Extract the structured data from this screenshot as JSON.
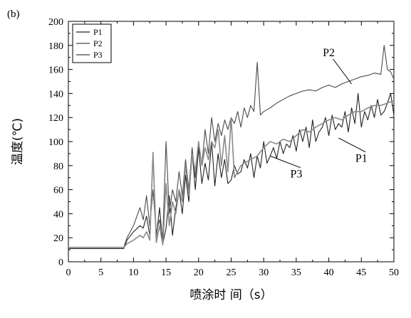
{
  "chart_data": {
    "type": "line",
    "panel_label": "(b)",
    "xlabel": "喷涂时 间（s）",
    "ylabel": "温度(℃)",
    "xlim": [
      0,
      50
    ],
    "ylim": [
      0,
      200
    ],
    "xticks": [
      "0",
      "5",
      "10",
      "15",
      "20",
      "25",
      "30",
      "35",
      "40",
      "45",
      "50"
    ],
    "yticks": [
      "0",
      "20",
      "40",
      "60",
      "80",
      "100",
      "120",
      "140",
      "160",
      "180",
      "200"
    ],
    "grid": false,
    "legend_position": "top-left",
    "series": [
      {
        "name": "P1",
        "color": "#222222",
        "x": [
          0,
          5,
          8.5,
          9,
          10,
          11,
          11.5,
          12,
          12.5,
          13,
          13.5,
          14,
          14.5,
          15,
          15.5,
          16,
          16.5,
          17,
          17.5,
          18,
          18.5,
          19,
          19.5,
          20,
          20.5,
          21,
          21.5,
          22,
          22.5,
          23,
          23.5,
          24,
          24.5,
          25,
          25.5,
          26,
          26.5,
          27,
          27.5,
          28,
          28.5,
          29,
          29.5,
          30,
          30.5,
          31,
          31.5,
          32,
          32.5,
          33,
          33.5,
          34,
          34.5,
          35,
          35.5,
          36,
          36.5,
          37,
          37.5,
          38,
          38.5,
          39,
          39.5,
          40,
          40.5,
          41,
          41.5,
          42,
          42.5,
          43,
          43.5,
          44,
          44.5,
          45,
          45.5,
          46,
          46.5,
          47,
          47.5,
          48,
          48.5,
          49,
          49.5,
          50
        ],
        "values": [
          11,
          11,
          11,
          18,
          25,
          30,
          28,
          38,
          22,
          88,
          20,
          45,
          15,
          28,
          55,
          22,
          45,
          60,
          40,
          72,
          50,
          92,
          60,
          95,
          65,
          82,
          68,
          100,
          63,
          90,
          70,
          85,
          65,
          68,
          80,
          73,
          75,
          85,
          78,
          90,
          70,
          88,
          78,
          100,
          82,
          88,
          95,
          86,
          100,
          90,
          98,
          95,
          105,
          92,
          110,
          100,
          112,
          95,
          118,
          100,
          108,
          112,
          120,
          105,
          122,
          110,
          115,
          112,
          125,
          108,
          128,
          115,
          140,
          112,
          125,
          118,
          130,
          120,
          135,
          122,
          125,
          132,
          140,
          122
        ]
      },
      {
        "name": "P2",
        "color": "#4a4a4a",
        "x": [
          0,
          5,
          8.5,
          9,
          10,
          11,
          11.5,
          12,
          12.5,
          13,
          13.5,
          14,
          14.5,
          15,
          15.5,
          16,
          16.5,
          17,
          17.5,
          18,
          18.5,
          19,
          19.5,
          20,
          20.5,
          21,
          21.5,
          22,
          22.5,
          23,
          23.5,
          24,
          24.5,
          25,
          25.5,
          26,
          26.5,
          27,
          27.5,
          28,
          28.5,
          29,
          29.5,
          30,
          31,
          32,
          33,
          34,
          35,
          36,
          37,
          38,
          39,
          40,
          41,
          42,
          43,
          44,
          45,
          46,
          47,
          48,
          48.5,
          49,
          49.5,
          50
        ],
        "values": [
          12,
          12,
          12,
          20,
          30,
          45,
          35,
          55,
          30,
          60,
          25,
          35,
          20,
          100,
          40,
          60,
          50,
          75,
          55,
          85,
          60,
          95,
          70,
          100,
          80,
          110,
          90,
          120,
          100,
          115,
          105,
          118,
          110,
          120,
          115,
          125,
          112,
          128,
          120,
          130,
          125,
          166,
          122,
          125,
          128,
          132,
          135,
          138,
          140,
          142,
          143,
          142,
          145,
          147,
          145,
          148,
          150,
          152,
          154,
          155,
          157,
          156,
          180,
          160,
          158,
          152
        ]
      },
      {
        "name": "P3",
        "color": "#8a8a8a",
        "x": [
          0,
          5,
          8.5,
          9,
          10,
          11,
          11.5,
          12,
          12.5,
          13,
          13.5,
          14,
          14.5,
          15,
          15.5,
          16,
          16.5,
          17,
          17.5,
          18,
          18.5,
          19,
          19.5,
          20,
          20.5,
          21,
          21.5,
          22,
          22.5,
          23,
          23.5,
          24,
          24.5,
          25,
          25.5,
          26,
          26.5,
          27,
          28,
          29,
          30,
          31,
          32,
          33,
          34,
          35,
          36,
          37,
          38,
          39,
          40,
          41,
          42,
          43,
          44,
          45,
          46,
          47,
          48,
          49,
          50
        ],
        "values": [
          12,
          12,
          12,
          15,
          18,
          22,
          20,
          25,
          18,
          91,
          16,
          30,
          14,
          65,
          30,
          50,
          40,
          60,
          50,
          80,
          55,
          90,
          75,
          100,
          80,
          95,
          85,
          100,
          95,
          110,
          80,
          105,
          75,
          120,
          70,
          75,
          80,
          82,
          85,
          88,
          95,
          100,
          98,
          102,
          100,
          105,
          110,
          108,
          112,
          115,
          118,
          120,
          118,
          122,
          125,
          125,
          128,
          130,
          130,
          132,
          134
        ]
      }
    ],
    "annotations": [
      {
        "text": "P2",
        "x": 40,
        "y": 171,
        "arrow_to_x": 43.5,
        "arrow_to_y": 148
      },
      {
        "text": "P1",
        "x": 45,
        "y": 83,
        "arrow_to_x": 41.5,
        "arrow_to_y": 103
      },
      {
        "text": "P3",
        "x": 35,
        "y": 70,
        "arrow_to_x": 31,
        "arrow_to_y": 88
      }
    ]
  }
}
